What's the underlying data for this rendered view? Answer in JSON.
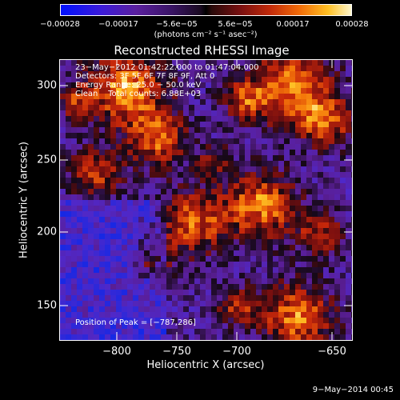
{
  "colorbar": {
    "ticks": [
      "−0.00028",
      "−0.00017",
      "−5.6e−05",
      "5.6e−05",
      "0.00017",
      "0.00028"
    ],
    "units": "(photons cm⁻² s⁻¹ asec⁻²)"
  },
  "title": "Reconstructed RHESSI Image",
  "info": {
    "line1": "23−May−2012 01:42:22.000 to 01:47:04.000",
    "line2": "Detectors: 3F 5F 6F 7F 8F 9F, Att 0",
    "line3": "Energy Range: 25.0 − 50.0 keV",
    "line4": "Clean    Total counts: 6.88E+03",
    "peak": "Position of Peak = [−787,286]"
  },
  "xaxis": {
    "label": "Heliocentric X (arcsec)",
    "ticks": [
      "−800",
      "−750",
      "−700",
      "−650"
    ]
  },
  "yaxis": {
    "label": "Heliocentric Y (arcsec)",
    "ticks": [
      "300",
      "250",
      "200",
      "150"
    ]
  },
  "timestamp": "9−May−2014 00:45"
}
